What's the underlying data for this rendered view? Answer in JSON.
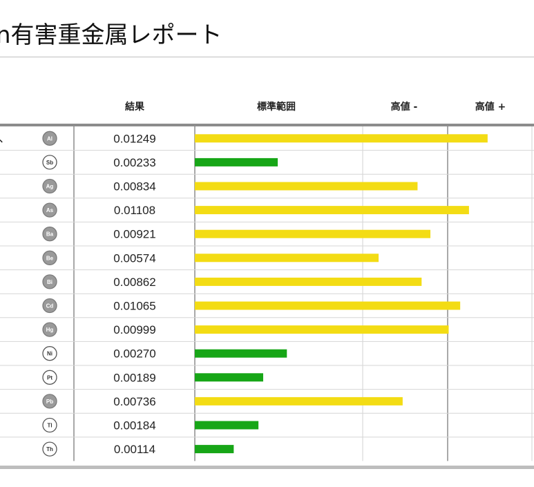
{
  "title": "n有害重金属レポート",
  "headers": {
    "result": "結果",
    "range": "標準範囲",
    "high_minus": "高値 -",
    "high_plus": "高値 +"
  },
  "colors": {
    "within_range": "#17a617",
    "elevated": "#f3dc14",
    "badge_filled": "#9a9a9a",
    "badge_outline": "#555555"
  },
  "chart_data": {
    "type": "bar",
    "orientation": "horizontal",
    "categories": [
      "Al",
      "Sb",
      "Ag",
      "As",
      "Ba",
      "Be",
      "Bi",
      "Cd",
      "Hg",
      "Ni",
      "Pt",
      "Pb",
      "Tl",
      "Th"
    ],
    "values": [
      0.01249,
      0.00233,
      0.00834,
      0.01108,
      0.00921,
      0.00574,
      0.00862,
      0.01065,
      0.00999,
      0.0027,
      0.00189,
      0.00736,
      0.00184,
      0.00114
    ],
    "labels": [
      "0.01249",
      "0.00233",
      "0.00834",
      "0.01108",
      "0.00921",
      "0.00574",
      "0.00862",
      "0.01065",
      "0.00999",
      "0.00270",
      "0.00189",
      "0.00736",
      "0.00184",
      "0.00114"
    ],
    "level": [
      "high",
      "normal",
      "high",
      "high",
      "high",
      "high",
      "high",
      "high",
      "high",
      "normal",
      "normal",
      "high",
      "normal",
      "normal"
    ],
    "badge_style": [
      "filled",
      "outline",
      "filled",
      "filled",
      "filled",
      "filled",
      "filled",
      "filled",
      "filled",
      "outline",
      "outline",
      "filled",
      "outline",
      "outline"
    ],
    "bar_extent_fraction": [
      0.865,
      0.245,
      0.658,
      0.81,
      0.696,
      0.543,
      0.67,
      0.784,
      0.75,
      0.272,
      0.202,
      0.614,
      0.188,
      0.115
    ],
    "zones": [
      "標準範囲",
      "高値 -",
      "高値 +"
    ],
    "legend": "none",
    "grid": true
  }
}
